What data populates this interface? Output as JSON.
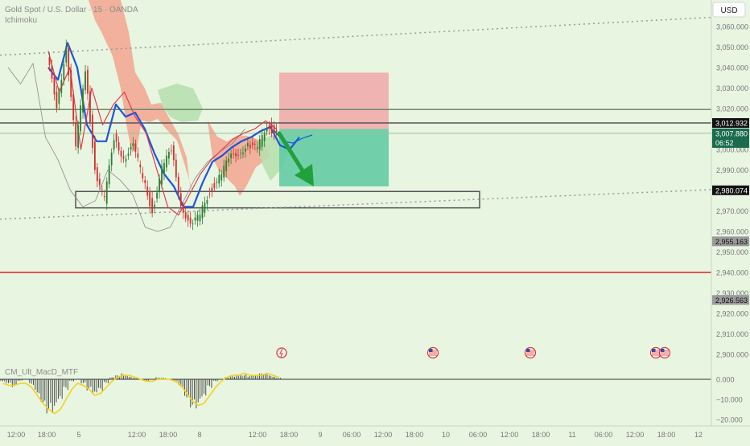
{
  "header": {
    "symbol_title": "Gold Spot / U.S. Dollar · 15 · OANDA",
    "indicator_ichimoku": "Ichimoku",
    "indicator_macd": "CM_Ult_MacD_MTF",
    "currency_button": "USD"
  },
  "colors": {
    "background": "#e8f5e1",
    "candle_up": "#2e7d32",
    "candle_down": "#d32f2f",
    "ichimoku_cloud_bear": "#f2a48f",
    "ichimoku_cloud_bull": "#b8e0b0",
    "tenkan": "#e53950",
    "kijun": "#1e55d8",
    "lagging": "#8a8a8a",
    "sl_zone": "#f0a8a8",
    "tp_zone": "#5cc9a0",
    "arrow": "#22a03c",
    "support_line": "#e02020",
    "macd_hist": "#3d3d3d",
    "macd_signal": "#f5d11d"
  },
  "chart_data": {
    "type": "line",
    "y_axis": {
      "range": [
        2895,
        3066
      ],
      "ticks": [
        3060,
        3050,
        3040,
        3030,
        3020,
        3000,
        2990,
        2970,
        2960,
        2950,
        2940,
        2930,
        2920,
        2910,
        2900
      ],
      "tick_labels": [
        "3,060.000",
        "3,050.000",
        "3,040.000",
        "3,030.000",
        "3,020.000",
        "3,000.000",
        "2,990.000",
        "2,970.000",
        "2,960.000",
        "2,950.000",
        "2,940.000",
        "2,930.000",
        "2,920.000",
        "2,910.000",
        "2,900.000"
      ]
    },
    "x_axis": {
      "tick_labels": [
        "12:00",
        "18:00",
        "5",
        "12:00",
        "18:00",
        "8",
        "12:00",
        "18:00",
        "9",
        "06:00",
        "12:00",
        "18:00",
        "10",
        "06:00",
        "12:00",
        "18:00",
        "11",
        "06:00",
        "12:00",
        "18:00",
        "12"
      ]
    },
    "price_labels": [
      {
        "value": 3012.932,
        "text": "3,012.932",
        "style": "dark"
      },
      {
        "value": 3007.88,
        "text": "3,007.880",
        "countdown": "06:52",
        "style": "current"
      },
      {
        "value": 2980.074,
        "text": "2,980.074",
        "style": "dark"
      },
      {
        "value": 2955.163,
        "text": "2,955.163",
        "style": "gray"
      },
      {
        "value": 2926.563,
        "text": "2,926.563",
        "style": "gray"
      }
    ],
    "horizontal_lines": [
      3019.5,
      3012.932,
      3007.88
    ],
    "support_level": 2940,
    "trend_channel": {
      "upper": [
        3046,
        3064.5
      ],
      "lower": [
        2966,
        2980.4
      ]
    },
    "demand_box": [
      2971.5,
      2979.5
    ],
    "position": {
      "stop_loss": 3037.5,
      "entry": 3010,
      "take_profit": 2982
    },
    "series": [
      {
        "name": "price",
        "values": [
          3045,
          3022,
          3050,
          3000,
          3040,
          2990,
          2975,
          3006,
          2996,
          3001,
          2987,
          2970,
          2990,
          3000,
          2974,
          2962,
          2968,
          2980,
          2986,
          2995,
          2999,
          3002,
          3000,
          3012,
          3007.9
        ]
      },
      {
        "name": "tenkan",
        "values": [
          3048,
          3028,
          3040,
          3000,
          3030,
          3012,
          3022,
          3028,
          3016,
          3008,
          2990,
          2972,
          2968,
          2978,
          2988,
          2995,
          3000,
          3005,
          3008,
          3010,
          3014,
          3010
        ]
      },
      {
        "name": "kijun",
        "values": [
          3040,
          3034,
          3052,
          3040,
          3012,
          3004,
          3004,
          3022,
          3016,
          3018,
          3010,
          2998,
          2988,
          2982,
          2972,
          2972,
          2984,
          2994,
          2997,
          3001,
          3004,
          3006,
          3009,
          3011,
          3002,
          3000,
          3006
        ]
      },
      {
        "name": "lagging",
        "values": [
          3040,
          3032,
          3042,
          3006,
          2995,
          2980,
          2972,
          2975,
          2990,
          2985,
          2978,
          2962,
          2960,
          2962,
          2974,
          2986,
          2994,
          2999,
          3003,
          3010
        ]
      }
    ],
    "macd": {
      "y_range": [
        -22,
        6
      ],
      "ticks": [
        0,
        -10,
        -20
      ],
      "tick_labels": [
        "0.000",
        "−10.000",
        "−20.000"
      ],
      "histogram": [
        -1,
        -2,
        -4,
        -1,
        0,
        -3,
        -7,
        -12,
        -17,
        -19,
        -14,
        -6,
        -1,
        0,
        -2,
        -6,
        -10,
        -7,
        -2,
        1,
        2,
        3,
        2,
        1,
        0,
        -1,
        0,
        1,
        1,
        0,
        -1,
        -4,
        -9,
        -14,
        -16,
        -12,
        -5,
        -1,
        0,
        1,
        2,
        3,
        3,
        2,
        2,
        3,
        3,
        2,
        1
      ],
      "signal": [
        -2,
        -3,
        -3,
        -2,
        -2,
        -4,
        -8,
        -12,
        -15,
        -17,
        -15,
        -10,
        -5,
        -2,
        -3,
        -5,
        -8,
        -7,
        -4,
        -1,
        1,
        2,
        2,
        1,
        0,
        -1,
        -1,
        0,
        0,
        0,
        -1,
        -3,
        -7,
        -11,
        -13,
        -12,
        -8,
        -4,
        -1,
        1,
        2,
        2,
        3,
        2,
        2,
        2,
        3,
        2,
        1
      ]
    },
    "event_markers": [
      "bolt",
      "us-flag",
      "us-flag",
      "us-flag",
      "us-flag"
    ]
  }
}
